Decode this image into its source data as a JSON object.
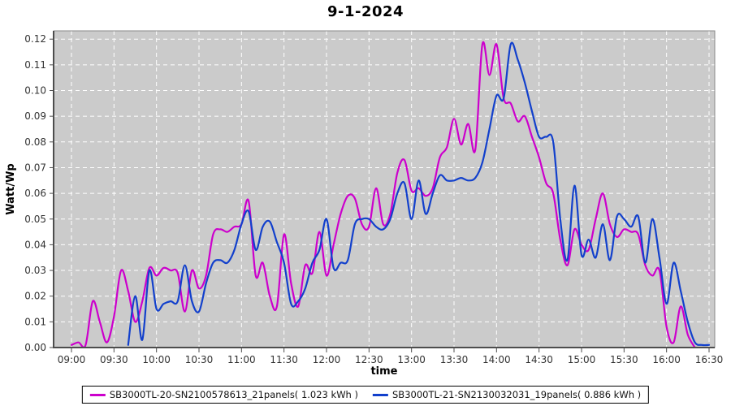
{
  "title": "9-1-2024",
  "colors": {
    "page_background": "#FFFFFF",
    "plot_background": "#CBCBCB",
    "grid_color": "#FFFFFF",
    "axis_color": "#4D4D4D",
    "tick_label_color": "#333333",
    "series1_color": "#CC00CC",
    "series2_color": "#1240CC",
    "legend_border": "#000000"
  },
  "chart_data": {
    "type": "line",
    "title": "9-1-2024",
    "xlabel": "time",
    "ylabel": "Watt/Wp",
    "ylim": [
      0.0,
      0.12
    ],
    "y_tick_step": 0.01,
    "grid": {
      "style": "dashed",
      "color": "#FFFFFF",
      "background": "#CBCBCB"
    },
    "legend_position": "bottom-center",
    "x_tick_labels": [
      "09:00",
      "09:30",
      "10:00",
      "10:30",
      "11:00",
      "11:30",
      "12:00",
      "12:30",
      "13:00",
      "13:30",
      "14:00",
      "14:30",
      "15:00",
      "15:30",
      "16:00",
      "16:30"
    ],
    "y_tick_labels": [
      "0.00",
      "0.01",
      "0.02",
      "0.03",
      "0.04",
      "0.05",
      "0.06",
      "0.07",
      "0.08",
      "0.09",
      "0.10",
      "0.11",
      "0.12"
    ],
    "x": [
      "09:00",
      "09:05",
      "09:10",
      "09:15",
      "09:20",
      "09:25",
      "09:30",
      "09:35",
      "09:40",
      "09:45",
      "09:50",
      "09:55",
      "10:00",
      "10:05",
      "10:10",
      "10:15",
      "10:20",
      "10:25",
      "10:30",
      "10:35",
      "10:40",
      "10:45",
      "10:50",
      "10:55",
      "11:00",
      "11:05",
      "11:10",
      "11:15",
      "11:20",
      "11:25",
      "11:30",
      "11:35",
      "11:40",
      "11:45",
      "11:50",
      "11:55",
      "12:00",
      "12:05",
      "12:10",
      "12:15",
      "12:20",
      "12:25",
      "12:30",
      "12:35",
      "12:40",
      "12:45",
      "12:50",
      "12:55",
      "13:00",
      "13:05",
      "13:10",
      "13:15",
      "13:20",
      "13:25",
      "13:30",
      "13:35",
      "13:40",
      "13:45",
      "13:50",
      "13:55",
      "14:00",
      "14:05",
      "14:10",
      "14:15",
      "14:20",
      "14:25",
      "14:30",
      "14:35",
      "14:40",
      "14:45",
      "14:50",
      "14:55",
      "15:00",
      "15:05",
      "15:10",
      "15:15",
      "15:20",
      "15:25",
      "15:30",
      "15:35",
      "15:40",
      "15:45",
      "15:50",
      "15:55",
      "16:00",
      "16:05",
      "16:10",
      "16:15",
      "16:20",
      "16:25",
      "16:30"
    ],
    "series": [
      {
        "name": "SB3000TL-20-SN2100578613_21panels",
        "energy": "1.023 kWh",
        "legend_label": "SB3000TL-20-SN2100578613_21panels( 1.023 kWh )",
        "color": "#CC00CC",
        "values": [
          0.001,
          0.002,
          0.001,
          0.018,
          0.01,
          0.002,
          0.012,
          0.03,
          0.022,
          0.01,
          0.018,
          0.031,
          0.028,
          0.031,
          0.03,
          0.029,
          0.014,
          0.03,
          0.023,
          0.028,
          0.044,
          0.046,
          0.045,
          0.047,
          0.048,
          0.057,
          0.028,
          0.033,
          0.02,
          0.016,
          0.044,
          0.025,
          0.016,
          0.032,
          0.029,
          0.045,
          0.028,
          0.04,
          0.052,
          0.059,
          0.058,
          0.048,
          0.047,
          0.062,
          0.048,
          0.052,
          0.068,
          0.073,
          0.061,
          0.062,
          0.059,
          0.062,
          0.074,
          0.078,
          0.089,
          0.079,
          0.087,
          0.077,
          0.118,
          0.106,
          0.118,
          0.097,
          0.095,
          0.088,
          0.09,
          0.082,
          0.074,
          0.064,
          0.06,
          0.042,
          0.032,
          0.046,
          0.04,
          0.038,
          0.05,
          0.06,
          0.048,
          0.043,
          0.046,
          0.045,
          0.044,
          0.032,
          0.028,
          0.03,
          0.008,
          0.002,
          0.016,
          0.005,
          0.0,
          null,
          null
        ]
      },
      {
        "name": "SB3000TL-21-SN2130032031_19panels",
        "energy": "0.886 kWh",
        "legend_label": "SB3000TL-21-SN2130032031_19panels( 0.886 kWh )",
        "color": "#1240CC",
        "values": [
          null,
          null,
          null,
          null,
          null,
          null,
          null,
          null,
          0.001,
          0.02,
          0.003,
          0.03,
          0.015,
          0.017,
          0.018,
          0.018,
          0.032,
          0.018,
          0.014,
          0.025,
          0.033,
          0.034,
          0.033,
          0.038,
          0.048,
          0.053,
          0.038,
          0.047,
          0.049,
          0.041,
          0.033,
          0.017,
          0.018,
          0.023,
          0.033,
          0.038,
          0.05,
          0.031,
          0.033,
          0.034,
          0.048,
          0.05,
          0.05,
          0.047,
          0.046,
          0.05,
          0.06,
          0.064,
          0.05,
          0.065,
          0.052,
          0.06,
          0.067,
          0.065,
          0.065,
          0.066,
          0.065,
          0.066,
          0.072,
          0.085,
          0.098,
          0.097,
          0.118,
          0.112,
          0.103,
          0.092,
          0.082,
          0.082,
          0.08,
          0.05,
          0.034,
          0.063,
          0.036,
          0.042,
          0.035,
          0.048,
          0.034,
          0.051,
          0.05,
          0.047,
          0.051,
          0.033,
          0.05,
          0.035,
          0.017,
          0.033,
          0.022,
          0.01,
          0.002,
          0.001,
          0.001
        ]
      }
    ]
  }
}
